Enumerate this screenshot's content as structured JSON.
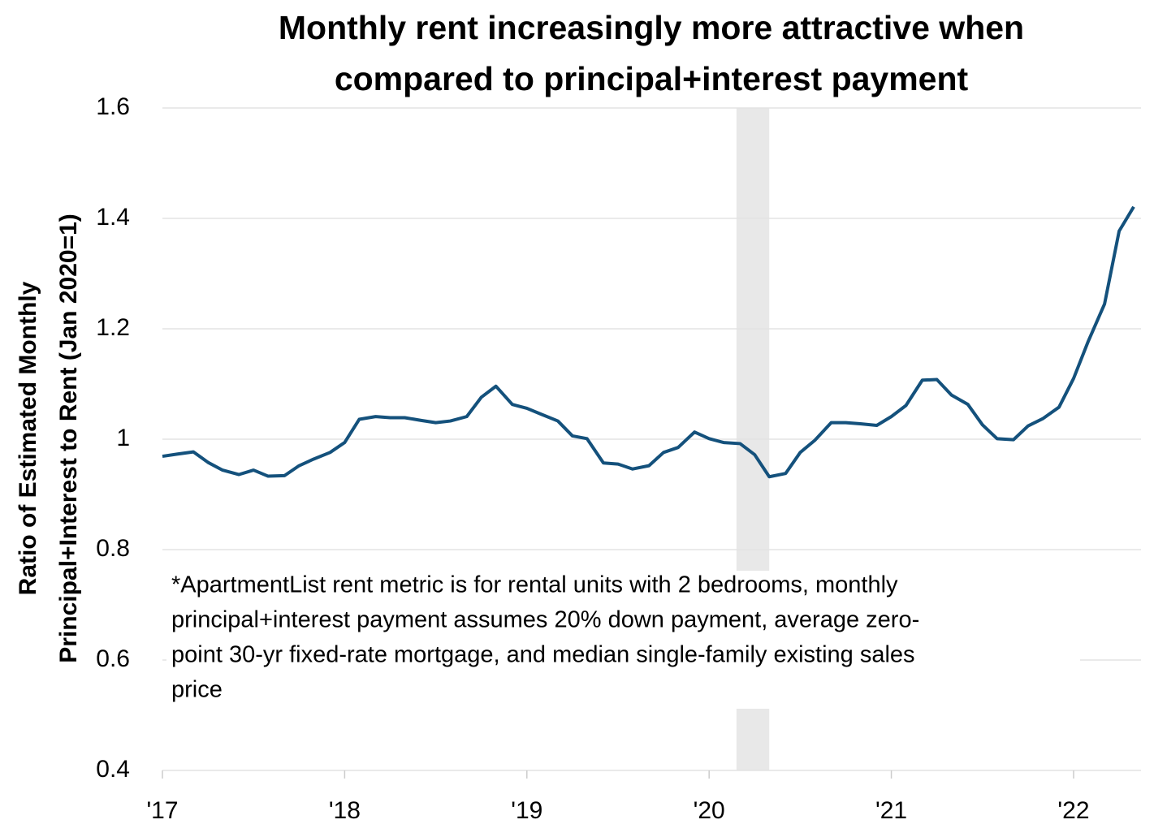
{
  "chart_data": {
    "type": "line",
    "title": [
      "Monthly rent increasingly more attractive when",
      "compared to principal+interest payment"
    ],
    "y_label": [
      "Ratio of Estimated Monthly",
      "Principal+Interest to Rent (Jan 2020=1)"
    ],
    "annotation": [
      "*ApartmentList rent metric is for rental units with 2 bedrooms, monthly",
      "principal+interest payment assumes 20% down payment, average zero-",
      "point 30-yr fixed-rate mortgage, and median single-family existing sales",
      "price"
    ],
    "x": [
      2017.0,
      2017.08,
      2017.17,
      2017.25,
      2017.33,
      2017.42,
      2017.5,
      2017.58,
      2017.67,
      2017.75,
      2017.83,
      2017.92,
      2018.0,
      2018.08,
      2018.17,
      2018.25,
      2018.33,
      2018.42,
      2018.5,
      2018.58,
      2018.67,
      2018.75,
      2018.83,
      2018.92,
      2019.0,
      2019.08,
      2019.17,
      2019.25,
      2019.33,
      2019.42,
      2019.5,
      2019.58,
      2019.67,
      2019.75,
      2019.83,
      2019.92,
      2020.0,
      2020.08,
      2020.17,
      2020.25,
      2020.33,
      2020.42,
      2020.5,
      2020.58,
      2020.67,
      2020.75,
      2020.83,
      2020.92,
      2021.0,
      2021.08,
      2021.17,
      2021.25,
      2021.33,
      2021.42,
      2021.5,
      2021.58,
      2021.67,
      2021.75,
      2021.83,
      2021.92,
      2022.0,
      2022.08,
      2022.17,
      2022.25,
      2022.33
    ],
    "series": [
      {
        "name": "Ratio",
        "color": "#14517c",
        "values": [
          0.969,
          0.973,
          0.977,
          0.958,
          0.944,
          0.936,
          0.944,
          0.933,
          0.934,
          0.952,
          0.964,
          0.976,
          0.994,
          1.036,
          1.041,
          1.039,
          1.039,
          1.034,
          1.03,
          1.033,
          1.041,
          1.076,
          1.096,
          1.063,
          1.056,
          1.045,
          1.033,
          1.006,
          1.001,
          0.957,
          0.955,
          0.946,
          0.952,
          0.976,
          0.985,
          1.013,
          1.001,
          0.994,
          0.992,
          0.972,
          0.932,
          0.938,
          0.976,
          0.998,
          1.03,
          1.03,
          1.028,
          1.025,
          1.041,
          1.061,
          1.107,
          1.108,
          1.08,
          1.063,
          1.026,
          1.001,
          0.999,
          1.024,
          1.037,
          1.058,
          1.11,
          1.177,
          1.245,
          1.377,
          1.421
        ]
      }
    ],
    "shaded_region": [
      2020.15,
      2020.33
    ],
    "shade_color": "#e8e8e8",
    "xlim": [
      2017,
      2022.37
    ],
    "xticks": [
      {
        "value": 2017,
        "label": "'17"
      },
      {
        "value": 2018,
        "label": "'18"
      },
      {
        "value": 2019,
        "label": "'19"
      },
      {
        "value": 2020,
        "label": "'20"
      },
      {
        "value": 2021,
        "label": "'21"
      },
      {
        "value": 2022,
        "label": "'22"
      }
    ],
    "ylim": [
      0.4,
      1.6
    ],
    "yticks": [
      0.4,
      0.6,
      0.8,
      1,
      1.2,
      1.4,
      1.6
    ],
    "grid": true
  }
}
